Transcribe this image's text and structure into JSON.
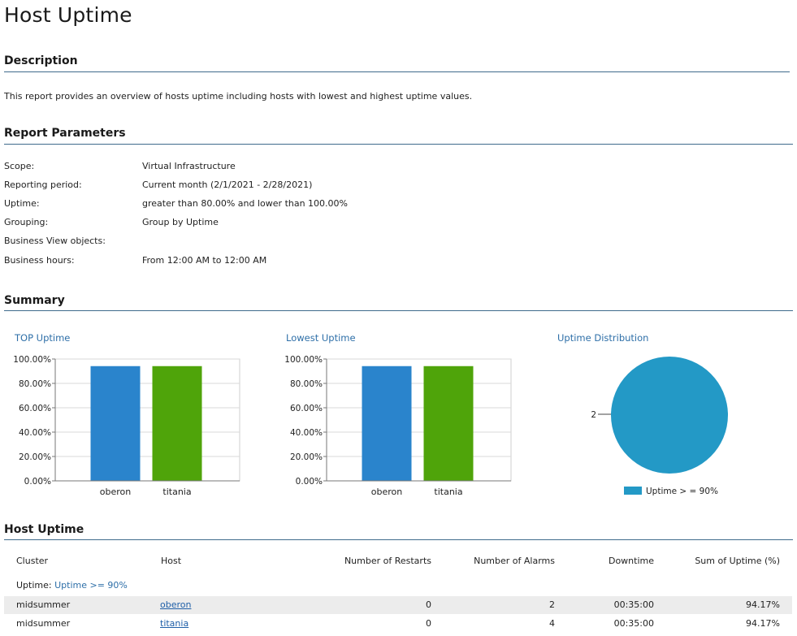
{
  "page": {
    "title": "Host Uptime"
  },
  "description": {
    "heading": "Description",
    "text": "This report provides an overview of hosts uptime including hosts with lowest and highest uptime values."
  },
  "parameters": {
    "heading": "Report Parameters",
    "items": [
      {
        "label": "Scope:",
        "value": "Virtual Infrastructure"
      },
      {
        "label": "Reporting period:",
        "value": "Current month (2/1/2021 - 2/28/2021)"
      },
      {
        "label": "Uptime:",
        "value": "greater than 80.00% and lower than 100.00%"
      },
      {
        "label": "Grouping:",
        "value": "Group by Uptime"
      },
      {
        "label": "Business View objects:",
        "value": ""
      },
      {
        "label": "Business hours:",
        "value": "From 12:00 AM to 12:00 AM"
      }
    ]
  },
  "summary": {
    "heading": "Summary"
  },
  "chart_data": [
    {
      "type": "bar",
      "title": "TOP Uptime",
      "categories": [
        "oberon",
        "titania"
      ],
      "values": [
        94.17,
        94.17
      ],
      "colors": [
        "#2a84cc",
        "#4fa40a"
      ],
      "ylim": [
        0,
        100
      ],
      "yticks": [
        "0.00%",
        "20.00%",
        "40.00%",
        "60.00%",
        "80.00%",
        "100.00%"
      ],
      "grid": true
    },
    {
      "type": "bar",
      "title": "Lowest Uptime",
      "categories": [
        "oberon",
        "titania"
      ],
      "values": [
        94.17,
        94.17
      ],
      "colors": [
        "#2a84cc",
        "#4fa40a"
      ],
      "ylim": [
        0,
        100
      ],
      "yticks": [
        "0.00%",
        "20.00%",
        "40.00%",
        "60.00%",
        "80.00%",
        "100.00%"
      ],
      "grid": true
    },
    {
      "type": "pie",
      "title": "Uptime Distribution",
      "slices": [
        {
          "label": "Uptime > = 90%",
          "value": 2,
          "color": "#2399c6"
        }
      ],
      "data_label": "2",
      "legend": "bottom"
    }
  ],
  "host_uptime": {
    "heading": "Host Uptime",
    "columns": [
      "Cluster",
      "Host",
      "Number of Restarts",
      "Number of Alarms",
      "Downtime",
      "Sum of Uptime (%)"
    ],
    "group_label": "Uptime:",
    "group_value": "Uptime >= 90%",
    "rows": [
      {
        "cluster": "midsummer",
        "host": "oberon",
        "restarts": "0",
        "alarms": "2",
        "downtime": "00:35:00",
        "uptime": "94.17%"
      },
      {
        "cluster": "midsummer",
        "host": "titania",
        "restarts": "0",
        "alarms": "4",
        "downtime": "00:35:00",
        "uptime": "94.17%"
      }
    ]
  },
  "colors": {
    "rule": "#3f6b8c",
    "accent_text": "#2e6fa8",
    "row_alt": "#ececec"
  }
}
